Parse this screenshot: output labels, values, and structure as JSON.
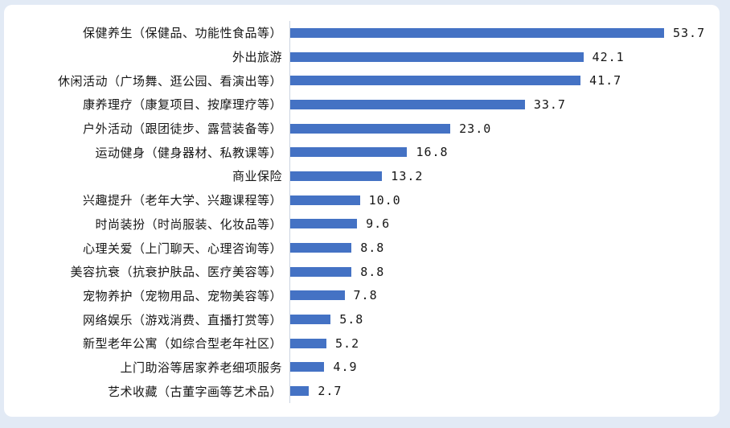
{
  "chart_data": {
    "type": "bar",
    "orientation": "horizontal",
    "title": "",
    "xlabel": "",
    "ylabel": "",
    "xlim": [
      0,
      57
    ],
    "grid": false,
    "legend": false,
    "bar_color": "#4472c4",
    "axis_line_color": "#ccd4e0",
    "background_color": "#ffffff",
    "page_background_color": "#e2eaf5",
    "categories": [
      "保健养生（保健品、功能性食品等）",
      "外出旅游",
      "休闲活动（广场舞、逛公园、看演出等）",
      "康养理疗（康复项目、按摩理疗等）",
      "户外活动（跟团徒步、露营装备等）",
      "运动健身（健身器材、私教课等）",
      "商业保险",
      "兴趣提升（老年大学、兴趣课程等）",
      "时尚装扮（时尚服装、化妆品等）",
      "心理关爱（上门聊天、心理咨询等）",
      "美容抗衰（抗衰护肤品、医疗美容等）",
      "宠物养护（宠物用品、宠物美容等）",
      "网络娱乐（游戏消费、直播打赏等）",
      "新型老年公寓（如综合型老年社区）",
      "上门助浴等居家养老细项服务",
      "艺术收藏（古董字画等艺术品）"
    ],
    "values": [
      53.7,
      42.1,
      41.7,
      33.7,
      23.0,
      16.8,
      13.2,
      10.0,
      9.6,
      8.8,
      8.8,
      7.8,
      5.8,
      5.2,
      4.9,
      2.7
    ],
    "value_labels": [
      "53.7",
      "42.1",
      "41.7",
      "33.7",
      "23.0",
      "16.8",
      "13.2",
      "10.0",
      "9.6",
      "8.8",
      "8.8",
      "7.8",
      "5.8",
      "5.2",
      "4.9",
      "2.7"
    ]
  }
}
